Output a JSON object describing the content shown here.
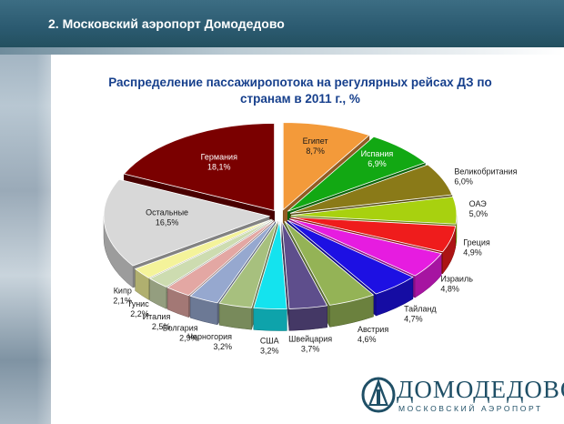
{
  "header": {
    "title": "2. Московский аэропорт Домодедово"
  },
  "chart_data": {
    "type": "pie",
    "title": "Распределение пассажиропотока на регулярных рейсах ДЗ по странам в 2011 г., %",
    "title_lines": [
      "Распределение пассажиропотока на регулярных рейсах ДЗ по",
      "странам в 2011 г., %"
    ],
    "slices": [
      {
        "label": "Египет",
        "value": 8.7,
        "value_text": "8,7%",
        "color": "#f39a3a"
      },
      {
        "label": "Испания",
        "value": 6.9,
        "value_text": "6,9%",
        "color": "#12a813"
      },
      {
        "label": "Великобритания",
        "value": 6.0,
        "value_text": "6,0%",
        "color": "#8a7a18"
      },
      {
        "label": "ОАЭ",
        "value": 5.0,
        "value_text": "5,0%",
        "color": "#a8d10f"
      },
      {
        "label": "Греция",
        "value": 4.9,
        "value_text": "4,9%",
        "color": "#ef1c1c"
      },
      {
        "label": "Израиль",
        "value": 4.8,
        "value_text": "4,8%",
        "color": "#e61ce0"
      },
      {
        "label": "Тайланд",
        "value": 4.7,
        "value_text": "4,7%",
        "color": "#1d10e3"
      },
      {
        "label": "Австрия",
        "value": 4.6,
        "value_text": "4,6%",
        "color": "#94b356"
      },
      {
        "label": "Швейцария",
        "value": 3.7,
        "value_text": "3,7%",
        "color": "#5e4e8c"
      },
      {
        "label": "США",
        "value": 3.2,
        "value_text": "3,2%",
        "color": "#14e3ee"
      },
      {
        "label": "Черногория",
        "value": 3.2,
        "value_text": "3,2%",
        "color": "#a7c07e"
      },
      {
        "label": "Болгария",
        "value": 2.9,
        "value_text": "2,9%",
        "color": "#96a8cf"
      },
      {
        "label": "Италия",
        "value": 2.5,
        "value_text": "2,5%",
        "color": "#e3a7a3"
      },
      {
        "label": "Тунис",
        "value": 2.2,
        "value_text": "2,2%",
        "color": "#cddcb0"
      },
      {
        "label": "Кипр",
        "value": 2.1,
        "value_text": "2,1%",
        "color": "#f4f39a"
      },
      {
        "label": "Остальные",
        "value": 16.5,
        "value_text": "16,5%",
        "color": "#d8d8d8"
      },
      {
        "label": "Германия",
        "value": 18.1,
        "value_text": "18,1%",
        "color": "#7a0000"
      }
    ]
  },
  "logo": {
    "word": "ДОМОДЕДОВО",
    "subtitle": "МОСКОВСКИЙ АЭРОПОРТ"
  }
}
